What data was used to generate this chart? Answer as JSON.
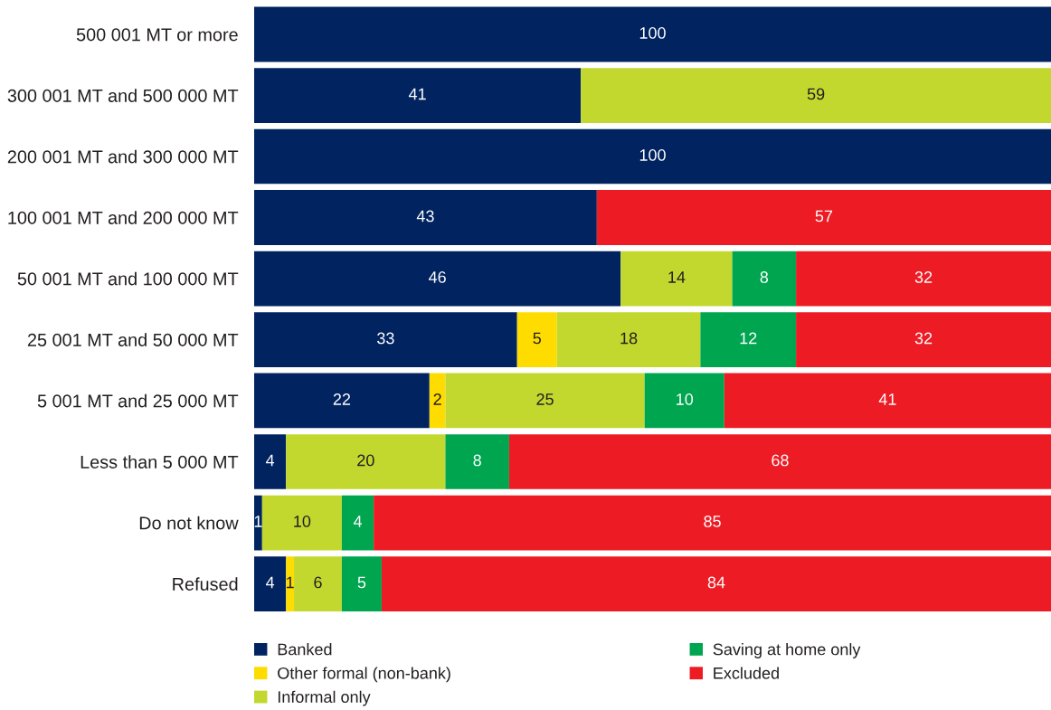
{
  "chart_data": {
    "type": "bar",
    "orientation": "horizontal",
    "stacked": true,
    "categories": [
      "500 001 MT or more",
      "300 001 MT and 500 000 MT",
      "200 001 MT and 300 000 MT",
      "100 001 MT and 200 000 MT",
      "50 001 MT and 100 000 MT",
      "25 001 MT and 50 000 MT",
      "5 001 MT and 25 000 MT",
      "Less than 5 000 MT",
      "Do not know",
      "Refused"
    ],
    "series": [
      {
        "name": "Banked",
        "color": "#012460",
        "values": [
          100,
          41,
          100,
          43,
          46,
          33,
          22,
          4,
          1,
          4
        ]
      },
      {
        "name": "Other formal (non-bank)",
        "color": "#ffdc00",
        "values": [
          null,
          null,
          null,
          null,
          null,
          5,
          2,
          null,
          null,
          1
        ]
      },
      {
        "name": "Informal only",
        "color": "#c2d82f",
        "values": [
          null,
          59,
          null,
          null,
          14,
          18,
          25,
          20,
          10,
          6
        ]
      },
      {
        "name": "Saving at home only",
        "color": "#00a550",
        "values": [
          null,
          null,
          null,
          null,
          8,
          12,
          10,
          8,
          4,
          5
        ]
      },
      {
        "name": "Excluded",
        "color": "#ed1c24",
        "values": [
          null,
          null,
          null,
          57,
          32,
          32,
          41,
          68,
          85,
          84
        ]
      }
    ],
    "xlim": [
      0,
      100
    ],
    "tick_labels": "y",
    "data_labels": true,
    "legend": "bottom"
  }
}
